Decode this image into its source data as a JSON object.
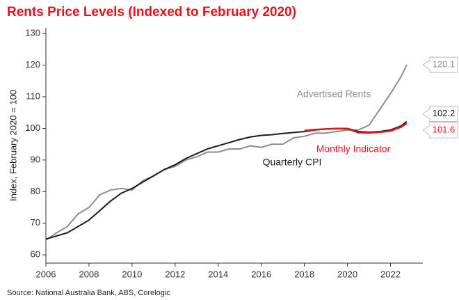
{
  "chart_data": {
    "type": "line",
    "title": "Rents Price Levels (Indexed to February 2020)",
    "y_label": "Index, February 2020 = 100",
    "source": "Source: National Australia Bank, ABS, Corelogic",
    "x": [
      2006,
      2006.5,
      2007,
      2007.5,
      2008,
      2008.5,
      2009,
      2009.5,
      2010,
      2010.5,
      2011,
      2011.5,
      2012,
      2012.5,
      2013,
      2013.5,
      2014,
      2014.5,
      2015,
      2015.5,
      2016,
      2016.5,
      2017,
      2017.5,
      2018,
      2018.5,
      2019,
      2019.5,
      2020,
      2020.5,
      2021,
      2021.5,
      2022,
      2022.5,
      2022.75
    ],
    "series": [
      {
        "name": "Advertised Rents",
        "color": "#8c8c8c",
        "values": [
          64.7,
          67,
          69,
          73,
          75,
          79,
          80.5,
          81,
          80.5,
          83.5,
          85,
          87,
          88,
          90,
          91,
          92.5,
          92.5,
          93.5,
          93.5,
          94.5,
          94,
          95,
          95,
          97,
          97.5,
          98.5,
          98.5,
          99,
          99.5,
          99.5,
          101,
          106,
          111,
          116.5,
          120.1
        ]
      },
      {
        "name": "Quarterly CPI",
        "color": "#1a1a1a",
        "values": [
          65,
          66,
          67,
          69,
          71,
          74,
          77,
          79.5,
          81,
          83,
          85,
          87,
          88.5,
          90.5,
          92,
          93.5,
          94.5,
          95.5,
          96.5,
          97.3,
          97.8,
          98,
          98.4,
          98.7,
          99,
          99.5,
          99.8,
          100,
          100,
          99,
          98.8,
          99,
          99.5,
          100.8,
          102.2
        ]
      },
      {
        "name": "Monthly Indicator",
        "color": "#e0141e",
        "values": [
          null,
          null,
          null,
          null,
          null,
          null,
          null,
          null,
          null,
          null,
          null,
          null,
          null,
          null,
          null,
          null,
          null,
          null,
          null,
          null,
          null,
          null,
          null,
          null,
          99.3,
          99.6,
          99.8,
          99.9,
          99.9,
          98.7,
          98.6,
          98.8,
          99.2,
          100.5,
          101.6
        ]
      }
    ],
    "xlim": [
      2006,
      2023.5
    ],
    "xticks": [
      2006,
      2008,
      2010,
      2012,
      2014,
      2016,
      2018,
      2020,
      2022
    ],
    "ylim": [
      57.4,
      131.8
    ],
    "yticks": [
      60,
      70,
      80,
      90,
      100,
      110,
      120,
      130
    ]
  }
}
